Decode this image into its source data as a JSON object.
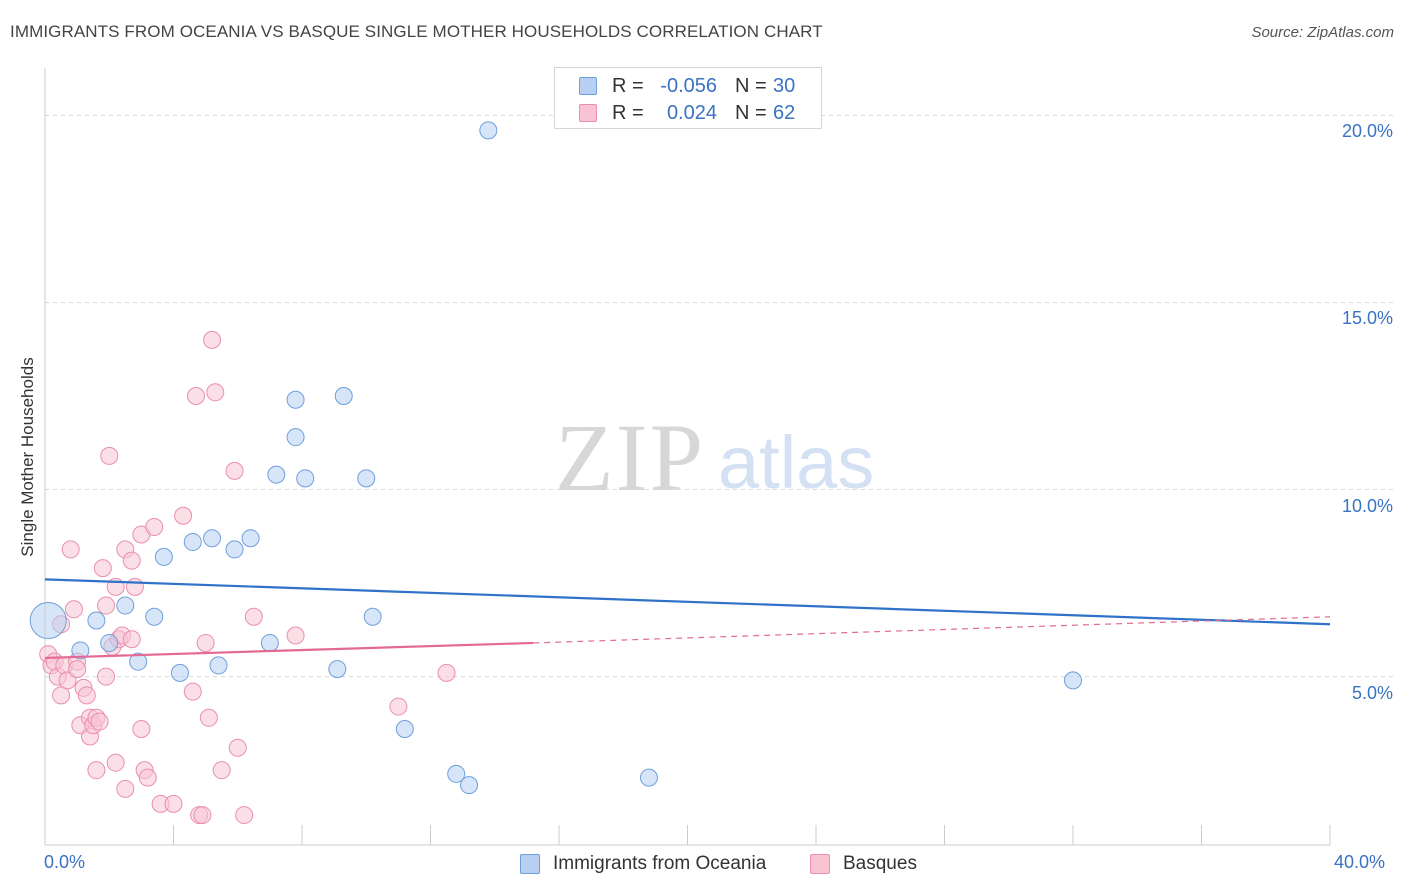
{
  "title": "IMMIGRANTS FROM OCEANIA VS BASQUE SINGLE MOTHER HOUSEHOLDS CORRELATION CHART",
  "source": "Source: ZipAtlas.com",
  "watermark": {
    "zip": "ZIP",
    "atlas": "atlas"
  },
  "legend": {
    "rows": [
      {
        "r_label": "R =",
        "r_value": "-0.056",
        "n_label": "N =",
        "n_value": "30"
      },
      {
        "r_label": "R =",
        "r_value": "0.024",
        "n_label": "N =",
        "n_value": "62"
      }
    ]
  },
  "x_axis": {
    "min_label": "0.0%",
    "max_label": "40.0%"
  },
  "y_axis": {
    "title": "Single Mother Households"
  },
  "colors": {
    "blue_fill": "#b7d0f2",
    "blue_stroke": "#6f9fdc",
    "blue_line": "#2f72c8",
    "pink_fill": "#f8c4d4",
    "pink_stroke": "#ea8faf",
    "pink_line": "#e36a94",
    "grid": "#d8d8d8",
    "tick_label": "#3a72c4"
  },
  "chart_data": {
    "type": "scatter",
    "title": "IMMIGRANTS FROM OCEANIA VS BASQUE SINGLE MOTHER HOUSEHOLDS CORRELATION CHART",
    "xlabel": "",
    "ylabel": "Single Mother Households",
    "xlim": [
      0,
      40
    ],
    "ylim": [
      0.5,
      21
    ],
    "y_ticks": [
      5,
      10,
      15,
      20
    ],
    "y_tick_labels": [
      "5.0%",
      "10.0%",
      "15.0%",
      "20.0%"
    ],
    "x_tick_labels": [
      "0.0%",
      "40.0%"
    ],
    "grid": true,
    "series": [
      {
        "name": "Immigrants from Oceania",
        "color": "blue",
        "r": -0.056,
        "n": 30,
        "trend": {
          "x": [
            0,
            40
          ],
          "y": [
            7.6,
            6.4
          ],
          "dashed_from": null
        },
        "points": [
          {
            "x": 0.1,
            "y": 6.5,
            "big": true
          },
          {
            "x": 1.1,
            "y": 5.7
          },
          {
            "x": 1.6,
            "y": 6.5
          },
          {
            "x": 2.0,
            "y": 5.9
          },
          {
            "x": 2.5,
            "y": 6.9
          },
          {
            "x": 2.9,
            "y": 5.4
          },
          {
            "x": 3.4,
            "y": 6.6
          },
          {
            "x": 3.7,
            "y": 8.2
          },
          {
            "x": 4.2,
            "y": 5.1
          },
          {
            "x": 4.6,
            "y": 8.6
          },
          {
            "x": 5.2,
            "y": 8.7
          },
          {
            "x": 5.4,
            "y": 5.3
          },
          {
            "x": 5.9,
            "y": 8.4
          },
          {
            "x": 6.4,
            "y": 8.7
          },
          {
            "x": 7.0,
            "y": 5.9
          },
          {
            "x": 7.2,
            "y": 10.4
          },
          {
            "x": 7.8,
            "y": 12.4
          },
          {
            "x": 7.8,
            "y": 11.4
          },
          {
            "x": 8.1,
            "y": 10.3
          },
          {
            "x": 9.1,
            "y": 5.2
          },
          {
            "x": 9.3,
            "y": 12.5
          },
          {
            "x": 10.0,
            "y": 10.3
          },
          {
            "x": 10.2,
            "y": 6.6
          },
          {
            "x": 11.2,
            "y": 3.6
          },
          {
            "x": 12.8,
            "y": 2.4
          },
          {
            "x": 13.2,
            "y": 2.1
          },
          {
            "x": 13.8,
            "y": 19.6
          },
          {
            "x": 18.8,
            "y": 2.3
          },
          {
            "x": 32.0,
            "y": 4.9
          }
        ]
      },
      {
        "name": "Basques",
        "color": "pink",
        "r": 0.024,
        "n": 62,
        "trend": {
          "x": [
            0,
            15.2,
            40
          ],
          "y": [
            5.5,
            5.9,
            6.6
          ],
          "dashed_from": 15.2
        },
        "points": [
          {
            "x": 0.1,
            "y": 5.6
          },
          {
            "x": 0.2,
            "y": 5.3
          },
          {
            "x": 0.3,
            "y": 5.4
          },
          {
            "x": 0.4,
            "y": 5.0
          },
          {
            "x": 0.5,
            "y": 4.5
          },
          {
            "x": 0.5,
            "y": 6.4
          },
          {
            "x": 0.6,
            "y": 5.3
          },
          {
            "x": 0.7,
            "y": 4.9
          },
          {
            "x": 0.8,
            "y": 8.4
          },
          {
            "x": 0.9,
            "y": 6.8
          },
          {
            "x": 1.0,
            "y": 5.4
          },
          {
            "x": 1.0,
            "y": 5.2
          },
          {
            "x": 1.1,
            "y": 3.7
          },
          {
            "x": 1.2,
            "y": 4.7
          },
          {
            "x": 1.3,
            "y": 4.5
          },
          {
            "x": 1.4,
            "y": 3.9
          },
          {
            "x": 1.4,
            "y": 3.4
          },
          {
            "x": 1.5,
            "y": 3.7
          },
          {
            "x": 1.6,
            "y": 3.9
          },
          {
            "x": 1.6,
            "y": 2.5
          },
          {
            "x": 1.7,
            "y": 3.8
          },
          {
            "x": 1.8,
            "y": 7.9
          },
          {
            "x": 1.9,
            "y": 5.0
          },
          {
            "x": 1.9,
            "y": 6.9
          },
          {
            "x": 2.0,
            "y": 10.9
          },
          {
            "x": 2.1,
            "y": 5.8
          },
          {
            "x": 2.2,
            "y": 2.7
          },
          {
            "x": 2.2,
            "y": 7.4
          },
          {
            "x": 2.3,
            "y": 6.0
          },
          {
            "x": 2.4,
            "y": 6.1
          },
          {
            "x": 2.5,
            "y": 2.0
          },
          {
            "x": 2.5,
            "y": 8.4
          },
          {
            "x": 2.7,
            "y": 8.1
          },
          {
            "x": 2.7,
            "y": 6.0
          },
          {
            "x": 2.8,
            "y": 7.4
          },
          {
            "x": 3.0,
            "y": 3.6
          },
          {
            "x": 3.0,
            "y": 8.8
          },
          {
            "x": 3.1,
            "y": 2.5
          },
          {
            "x": 3.2,
            "y": 2.3
          },
          {
            "x": 3.4,
            "y": 9.0
          },
          {
            "x": 3.6,
            "y": 1.6
          },
          {
            "x": 4.0,
            "y": 1.6
          },
          {
            "x": 4.3,
            "y": 9.3
          },
          {
            "x": 4.6,
            "y": 4.6
          },
          {
            "x": 4.7,
            "y": 12.5
          },
          {
            "x": 4.8,
            "y": 1.3
          },
          {
            "x": 4.9,
            "y": 1.3
          },
          {
            "x": 5.0,
            "y": 5.9
          },
          {
            "x": 5.1,
            "y": 3.9
          },
          {
            "x": 5.2,
            "y": 14.0
          },
          {
            "x": 5.3,
            "y": 12.6
          },
          {
            "x": 5.5,
            "y": 2.5
          },
          {
            "x": 5.9,
            "y": 10.5
          },
          {
            "x": 6.0,
            "y": 3.1
          },
          {
            "x": 6.2,
            "y": 1.3
          },
          {
            "x": 6.5,
            "y": 6.6
          },
          {
            "x": 7.8,
            "y": 6.1
          },
          {
            "x": 11.0,
            "y": 4.2
          },
          {
            "x": 12.5,
            "y": 5.1
          }
        ]
      }
    ]
  },
  "bottom_legend": [
    {
      "label": "Immigrants from Oceania",
      "color": "blue"
    },
    {
      "label": "Basques",
      "color": "pink"
    }
  ]
}
